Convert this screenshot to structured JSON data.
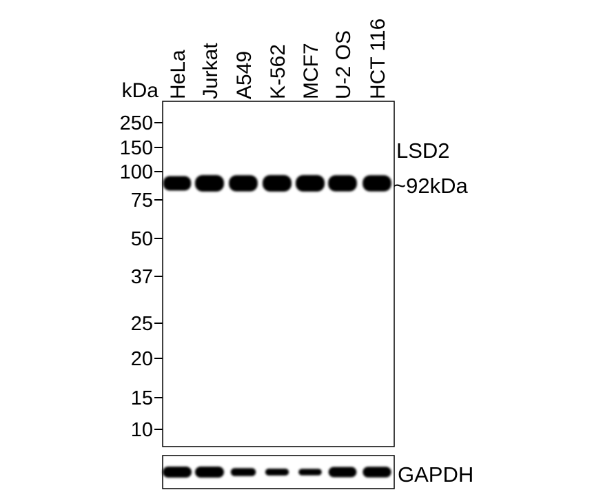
{
  "unit_label": "kDa",
  "lanes": [
    "HeLa",
    "Jurkat",
    "A549",
    "K-562",
    "MCF7",
    "U-2 OS",
    "HCT 116"
  ],
  "markers": [
    "250",
    "150",
    "100",
    "75",
    "50",
    "37",
    "25",
    "20",
    "15",
    "10"
  ],
  "target": {
    "name": "LSD2",
    "size_label": "~92kDa",
    "band_intensity": [
      0.75,
      1,
      0.95,
      1,
      1,
      0.95,
      0.95
    ]
  },
  "loading_control": {
    "name": "GAPDH",
    "band_intensity": [
      1,
      1,
      0.6,
      0.45,
      0.4,
      0.9,
      0.95
    ]
  }
}
